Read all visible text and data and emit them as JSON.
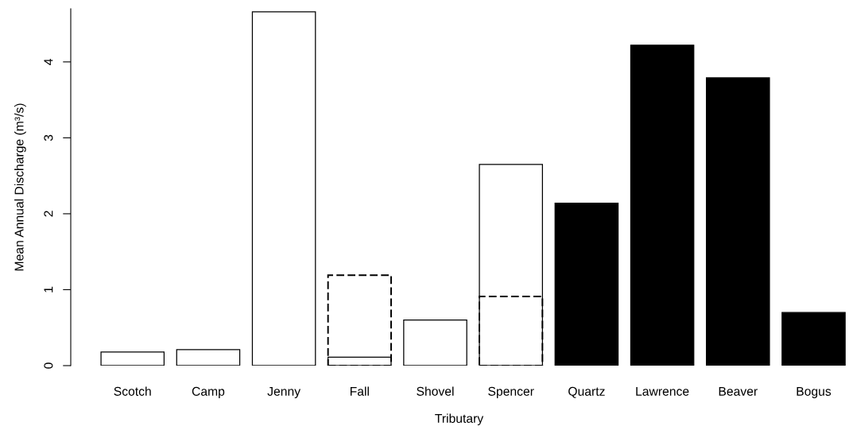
{
  "chart_data": {
    "type": "bar",
    "xlabel": "Tributary",
    "ylabel": "Mean Annual Discharge (m³/s)",
    "categories": [
      "Scotch",
      "Camp",
      "Jenny",
      "Fall",
      "Shovel",
      "Spencer",
      "Quartz",
      "Lawrence",
      "Beaver",
      "Bogus"
    ],
    "series": [
      {
        "colors": [
          "#ffffff",
          "#ffffff",
          "#ffffff",
          "#ffffff",
          "#ffffff",
          "#ffffff",
          "#000000",
          "#000000",
          "#000000",
          "#000000"
        ],
        "values": [
          0.18,
          0.21,
          4.66,
          0.11,
          0.6,
          2.65,
          2.14,
          4.22,
          3.79,
          0.7
        ]
      },
      {
        "color": "#000000",
        "line_style": "dashed",
        "values": [
          null,
          null,
          null,
          1.19,
          null,
          0.91,
          null,
          null,
          null,
          null
        ]
      }
    ],
    "ylim": [
      0,
      4.7
    ],
    "yticks": [
      0,
      1,
      2,
      3,
      4
    ]
  }
}
